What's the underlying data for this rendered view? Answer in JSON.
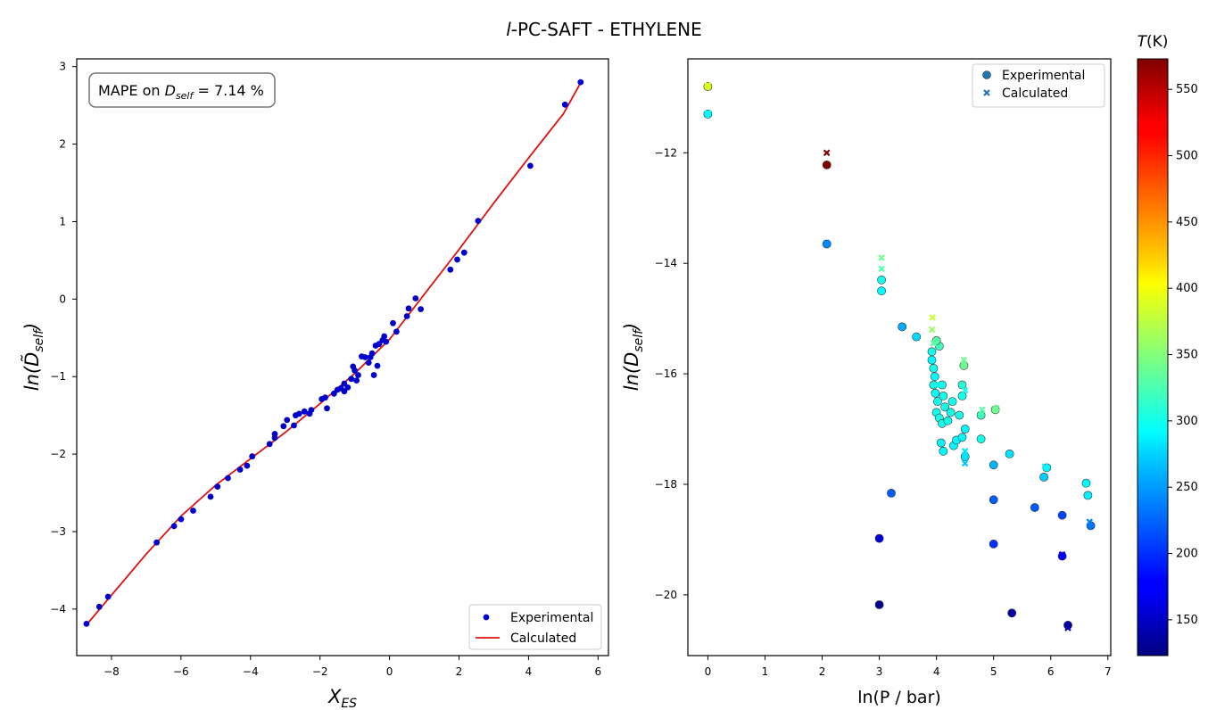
{
  "figure": {
    "title_prefix": "l",
    "title_rest": "-PC-SAFT - ETHYLENE"
  },
  "chart_data": [
    {
      "type": "scatter",
      "xlabel": "X",
      "xlabel_sub": "ES",
      "ylabel_pre": "ln(",
      "ylabel_sym": "D̃",
      "ylabel_sub": "self",
      "ylabel_post": ")",
      "xlim": [
        -9.0,
        6.3
      ],
      "ylim": [
        -4.6,
        3.1
      ],
      "xticks": [
        -8,
        -6,
        -4,
        -2,
        0,
        2,
        4,
        6
      ],
      "yticks": [
        -4,
        -3,
        -2,
        -1,
        0,
        1,
        2,
        3
      ],
      "annotation": {
        "prefix": "MAPE on ",
        "sym": "D",
        "sub": "self",
        "suffix": " = 7.14 %"
      },
      "legend": {
        "position": "lower-right",
        "entries": [
          "Experimental",
          "Calculated"
        ]
      },
      "colors": {
        "experimental": "#0000cc",
        "calculated": "#dd1111"
      },
      "series": [
        {
          "name": "Experimental",
          "kind": "points",
          "points": [
            [
              -8.72,
              -4.19
            ],
            [
              -8.35,
              -3.97
            ],
            [
              -8.1,
              -3.84
            ],
            [
              -6.7,
              -3.14
            ],
            [
              -6.2,
              -2.93
            ],
            [
              -6.0,
              -2.84
            ],
            [
              -5.65,
              -2.73
            ],
            [
              -5.15,
              -2.55
            ],
            [
              -4.95,
              -2.42
            ],
            [
              -4.65,
              -2.31
            ],
            [
              -4.3,
              -2.2
            ],
            [
              -4.1,
              -2.15
            ],
            [
              -3.95,
              -2.03
            ],
            [
              -3.45,
              -1.87
            ],
            [
              -3.3,
              -1.79
            ],
            [
              -3.3,
              -1.74
            ],
            [
              -3.05,
              -1.64
            ],
            [
              -2.95,
              -1.56
            ],
            [
              -2.75,
              -1.63
            ],
            [
              -2.7,
              -1.5
            ],
            [
              -2.6,
              -1.48
            ],
            [
              -2.45,
              -1.45
            ],
            [
              -2.3,
              -1.48
            ],
            [
              -2.25,
              -1.43
            ],
            [
              -1.95,
              -1.29
            ],
            [
              -1.85,
              -1.27
            ],
            [
              -1.8,
              -1.41
            ],
            [
              -1.6,
              -1.22
            ],
            [
              -1.5,
              -1.17
            ],
            [
              -1.4,
              -1.15
            ],
            [
              -1.3,
              -1.19
            ],
            [
              -1.3,
              -1.09
            ],
            [
              -1.2,
              -1.14
            ],
            [
              -1.1,
              -1.03
            ],
            [
              -1.05,
              -0.87
            ],
            [
              -1.0,
              -0.92
            ],
            [
              -0.95,
              -1.05
            ],
            [
              -0.9,
              -0.98
            ],
            [
              -0.8,
              -0.74
            ],
            [
              -0.7,
              -0.75
            ],
            [
              -0.6,
              -0.82
            ],
            [
              -0.55,
              -0.75
            ],
            [
              -0.5,
              -0.7
            ],
            [
              -0.45,
              -0.98
            ],
            [
              -0.4,
              -0.6
            ],
            [
              -0.35,
              -0.86
            ],
            [
              -0.3,
              -0.58
            ],
            [
              -0.2,
              -0.53
            ],
            [
              -0.15,
              -0.48
            ],
            [
              -0.1,
              -0.55
            ],
            [
              0.1,
              -0.31
            ],
            [
              0.2,
              -0.42
            ],
            [
              0.5,
              -0.22
            ],
            [
              0.55,
              -0.12
            ],
            [
              0.75,
              0.01
            ],
            [
              0.9,
              -0.13
            ],
            [
              1.75,
              0.38
            ],
            [
              1.95,
              0.51
            ],
            [
              2.15,
              0.6
            ],
            [
              2.55,
              1.01
            ],
            [
              4.05,
              1.72
            ],
            [
              5.05,
              2.51
            ],
            [
              5.5,
              2.8
            ]
          ]
        },
        {
          "name": "Calculated",
          "kind": "line",
          "points": [
            [
              -8.75,
              -4.22
            ],
            [
              -8.0,
              -3.82
            ],
            [
              -7.0,
              -3.29
            ],
            [
              -6.0,
              -2.8
            ],
            [
              -5.0,
              -2.4
            ],
            [
              -4.0,
              -2.06
            ],
            [
              -3.0,
              -1.72
            ],
            [
              -2.0,
              -1.35
            ],
            [
              -1.0,
              -0.96
            ],
            [
              0.0,
              -0.52
            ],
            [
              1.0,
              0.06
            ],
            [
              2.0,
              0.64
            ],
            [
              3.0,
              1.24
            ],
            [
              4.0,
              1.82
            ],
            [
              5.0,
              2.39
            ],
            [
              5.5,
              2.79
            ]
          ]
        }
      ]
    },
    {
      "type": "scatter",
      "xlabel": "ln(P / bar)",
      "ylabel_pre": "ln(",
      "ylabel_sym": "D",
      "ylabel_sub": "self",
      "ylabel_post": ")",
      "xlim": [
        -0.35,
        7.05
      ],
      "ylim": [
        -21.1,
        -10.3
      ],
      "xticks": [
        0,
        1,
        2,
        3,
        4,
        5,
        6,
        7
      ],
      "yticks": [
        -20,
        -18,
        -16,
        -14,
        -12
      ],
      "legend": {
        "position": "top-right",
        "entries": [
          "Experimental",
          "Calculated"
        ]
      },
      "colorbar": {
        "label_sym": "T",
        "label_unit": "(K)",
        "range": [
          123,
          573
        ],
        "ticks": [
          150,
          200,
          250,
          300,
          350,
          400,
          450,
          500,
          550
        ],
        "colormap": "jet"
      },
      "series": [
        {
          "name": "Experimental",
          "kind": "points",
          "points": [
            [
              0.0,
              -10.8,
              390
            ],
            [
              0.0,
              -11.3,
              290
            ],
            [
              2.08,
              -12.22,
              573
            ],
            [
              2.08,
              -13.65,
              240
            ],
            [
              3.04,
              -14.3,
              300
            ],
            [
              3.04,
              -14.5,
              290
            ],
            [
              3.0,
              -18.98,
              160
            ],
            [
              3.0,
              -20.18,
              130
            ],
            [
              3.21,
              -18.16,
              220
            ],
            [
              3.4,
              -15.15,
              255
            ],
            [
              3.65,
              -15.33,
              275
            ],
            [
              3.92,
              -15.6,
              300
            ],
            [
              3.92,
              -15.75,
              290
            ],
            [
              3.95,
              -15.9,
              300
            ],
            [
              3.97,
              -16.05,
              290
            ],
            [
              3.95,
              -16.2,
              300
            ],
            [
              3.98,
              -16.35,
              295
            ],
            [
              4.02,
              -16.5,
              300
            ],
            [
              4.0,
              -16.7,
              300
            ],
            [
              4.05,
              -16.8,
              300
            ],
            [
              4.05,
              -15.5,
              320
            ],
            [
              4.0,
              -15.4,
              330
            ],
            [
              4.1,
              -16.2,
              300
            ],
            [
              4.12,
              -16.4,
              300
            ],
            [
              4.15,
              -16.6,
              300
            ],
            [
              4.1,
              -16.9,
              300
            ],
            [
              4.08,
              -17.25,
              290
            ],
            [
              4.12,
              -17.4,
              290
            ],
            [
              4.2,
              -16.85,
              300
            ],
            [
              4.25,
              -16.7,
              300
            ],
            [
              4.28,
              -16.5,
              300
            ],
            [
              4.3,
              -17.3,
              290
            ],
            [
              4.35,
              -17.2,
              290
            ],
            [
              4.4,
              -16.75,
              300
            ],
            [
              4.45,
              -16.4,
              300
            ],
            [
              4.45,
              -16.2,
              310
            ],
            [
              4.48,
              -15.85,
              340
            ],
            [
              4.5,
              -17.0,
              290
            ],
            [
              4.45,
              -17.15,
              290
            ],
            [
              4.5,
              -17.5,
              280
            ],
            [
              4.78,
              -16.75,
              320
            ],
            [
              4.78,
              -17.18,
              300
            ],
            [
              5.03,
              -16.65,
              340
            ],
            [
              5.0,
              -17.65,
              260
            ],
            [
              5.28,
              -17.45,
              280
            ],
            [
              5.0,
              -18.28,
              220
            ],
            [
              5.0,
              -19.08,
              200
            ],
            [
              5.32,
              -20.33,
              140
            ],
            [
              5.72,
              -18.42,
              220
            ],
            [
              5.93,
              -17.7,
              290
            ],
            [
              5.88,
              -17.87,
              270
            ],
            [
              6.2,
              -18.56,
              210
            ],
            [
              6.2,
              -19.3,
              180
            ],
            [
              6.3,
              -20.55,
              140
            ],
            [
              6.62,
              -17.98,
              290
            ],
            [
              6.65,
              -18.2,
              285
            ],
            [
              6.7,
              -18.75,
              230
            ]
          ]
        },
        {
          "name": "Calculated",
          "kind": "crosses",
          "points": [
            [
              0.0,
              -10.78,
              390
            ],
            [
              0.0,
              -11.28,
              290
            ],
            [
              2.08,
              -12.0,
              573
            ],
            [
              2.08,
              -13.63,
              240
            ],
            [
              3.04,
              -13.9,
              340
            ],
            [
              3.04,
              -14.1,
              330
            ],
            [
              3.0,
              -18.97,
              160
            ],
            [
              3.0,
              -20.17,
              130
            ],
            [
              3.93,
              -14.98,
              380
            ],
            [
              3.92,
              -15.2,
              360
            ],
            [
              3.95,
              -15.45,
              330
            ],
            [
              4.0,
              -16.2,
              300
            ],
            [
              4.48,
              -15.75,
              340
            ],
            [
              4.5,
              -16.3,
              300
            ],
            [
              4.5,
              -17.62,
              270
            ],
            [
              4.5,
              -17.4,
              280
            ],
            [
              4.8,
              -16.65,
              330
            ],
            [
              5.05,
              -16.62,
              340
            ],
            [
              5.9,
              -17.68,
              290
            ],
            [
              6.2,
              -19.27,
              180
            ],
            [
              6.3,
              -20.6,
              140
            ],
            [
              6.68,
              -18.68,
              235
            ]
          ]
        }
      ]
    }
  ]
}
